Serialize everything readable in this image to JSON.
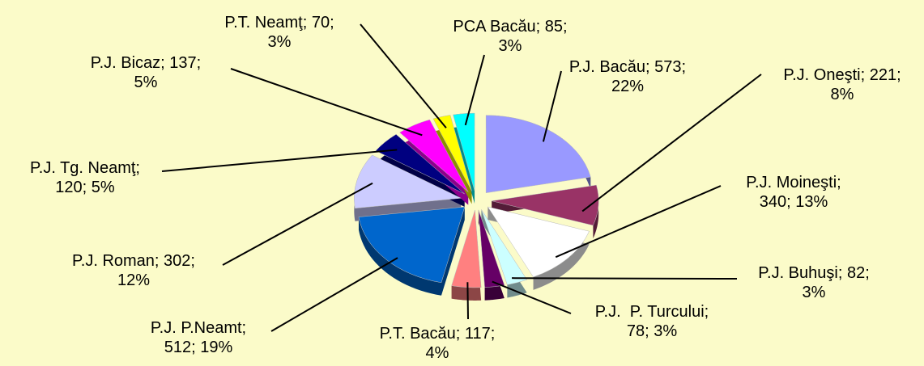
{
  "chart_data": {
    "type": "pie",
    "values": [
      573,
      221,
      340,
      82,
      78,
      117,
      512,
      302,
      120,
      137,
      70,
      85
    ],
    "value_labels": [
      "P.J. Bacău; 573;\n22%",
      "P.J. Oneşti; 221;\n8%",
      "P.J. Moineşti;\n340; 13%",
      "P.J. Buhuşi; 82;\n3%",
      "P.J.  P. Turcului;\n78; 3%",
      "P.T. Bacău; 117;\n4%",
      "P.J. P.Neamt;\n512; 19%",
      "P.J. Roman; 302;\n12%",
      "P.J. Tg. Neamţ;\n120; 5%",
      "P.J. Bicaz; 137;\n5%",
      "P.T. Neamţ; 70;\n3%",
      "PCA Bacău; 85;\n3%"
    ],
    "colors": [
      "#9999ff",
      "#993366",
      "#ffffff",
      "#ccffff",
      "#660066",
      "#ff8080",
      "#0066cc",
      "#ccccff",
      "#000080",
      "#ff00ff",
      "#ffff00",
      "#00ffff"
    ]
  }
}
